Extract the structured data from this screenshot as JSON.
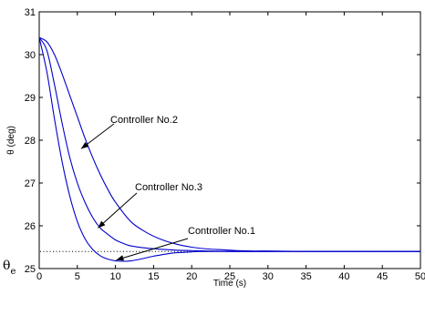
{
  "chart_data": {
    "type": "line",
    "title": "",
    "xlabel": "Time (s)",
    "ylabel": "θ (deg)",
    "xlim": [
      0,
      50
    ],
    "ylim": [
      25,
      31
    ],
    "xticks": [
      "0",
      "5",
      "10",
      "15",
      "20",
      "25",
      "30",
      "35",
      "40",
      "45",
      "50"
    ],
    "yticks": [
      "25",
      "26",
      "27",
      "28",
      "29",
      "30",
      "31"
    ],
    "grid": false,
    "legend": "none",
    "line_color": "#0000cc",
    "reference": {
      "label_main": "θ",
      "label_sub": "e",
      "y": 25.4,
      "style": "dotted"
    },
    "series": [
      {
        "x": [
          0,
          1,
          2,
          3,
          4,
          5,
          6,
          7,
          8,
          9,
          10,
          11,
          12,
          14,
          16,
          18,
          20,
          22,
          25,
          30,
          35,
          40,
          45,
          50
        ],
        "values": [
          30.4,
          30.1,
          29.3,
          28.4,
          27.6,
          27.0,
          26.55,
          26.2,
          25.95,
          25.8,
          25.67,
          25.59,
          25.53,
          25.48,
          25.45,
          25.43,
          25.42,
          25.41,
          25.4,
          25.4,
          25.4,
          25.4,
          25.4,
          25.4
        ]
      },
      {
        "x": [
          0,
          1,
          2,
          3,
          4,
          5,
          6,
          7,
          8,
          9,
          10,
          12,
          14,
          16,
          18,
          20,
          22,
          24,
          26,
          28,
          30,
          35,
          40,
          45,
          50
        ],
        "values": [
          30.4,
          30.3,
          30.0,
          29.55,
          29.05,
          28.55,
          28.05,
          27.6,
          27.2,
          26.85,
          26.55,
          26.1,
          25.85,
          25.68,
          25.57,
          25.5,
          25.46,
          25.44,
          25.42,
          25.41,
          25.41,
          25.4,
          25.4,
          25.4,
          25.4
        ]
      },
      {
        "x": [
          0,
          1,
          2,
          3,
          4,
          5,
          6,
          7,
          8,
          9,
          10,
          11,
          12,
          13,
          14,
          15,
          16,
          17,
          18,
          19,
          20,
          21,
          22,
          23,
          24,
          25,
          30,
          35,
          40,
          45,
          50
        ],
        "values": [
          30.4,
          29.6,
          28.5,
          27.5,
          26.7,
          26.1,
          25.7,
          25.45,
          25.3,
          25.22,
          25.18,
          25.17,
          25.18,
          25.21,
          25.25,
          25.29,
          25.32,
          25.35,
          25.37,
          25.38,
          25.39,
          25.4,
          25.4,
          25.4,
          25.4,
          25.4,
          25.4,
          25.4,
          25.4,
          25.4,
          25.4
        ]
      }
    ],
    "annotations": [
      {
        "text": "Controller No.2",
        "target_x": 5.5,
        "target_y": 27.8
      },
      {
        "text": "Controller No.3",
        "target_x": 7.7,
        "target_y": 25.95
      },
      {
        "text": "Controller No.1",
        "target_x": 10.1,
        "target_y": 25.2
      }
    ]
  }
}
